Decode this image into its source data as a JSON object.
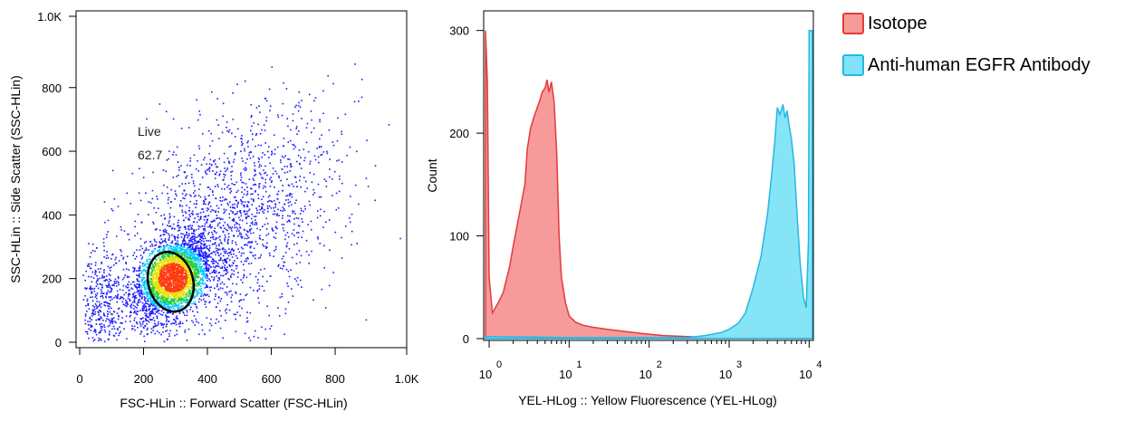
{
  "chart_data": [
    {
      "type": "scatter",
      "xlabel": "FSC-HLin :: Forward Scatter (FSC-HLin)",
      "ylabel": "SSC-HLin :: Side Scatter (SSC-HLin)",
      "xlim": [
        0,
        1024
      ],
      "ylim": [
        0,
        1024
      ],
      "x_ticks": [
        0,
        200,
        400,
        600,
        800,
        1024
      ],
      "x_tick_labels": [
        "0",
        "200",
        "400",
        "600",
        "800",
        "1.0K"
      ],
      "y_ticks": [
        0,
        200,
        400,
        600,
        800,
        1024
      ],
      "y_tick_labels": [
        "0",
        "200",
        "400",
        "600",
        "800",
        "1.0K"
      ],
      "density_colormap": [
        "#1b1bff",
        "#00c8ff",
        "#1fcf3f",
        "#e8e000",
        "#ff3a10"
      ],
      "gate": {
        "name": "Live",
        "percent": "62.7",
        "shape": "ellipse",
        "center": [
          285,
          190
        ],
        "radii": [
          140,
          190
        ],
        "color": "#000000"
      },
      "population": {
        "main": {
          "center": [
            290,
            205
          ],
          "spread": [
            60,
            60
          ],
          "share": 0.58
        },
        "broad": {
          "center": [
            460,
            360
          ],
          "spread": [
            170,
            160
          ],
          "share": 0.34
        },
        "debris": {
          "center": [
            70,
            110
          ],
          "spread": [
            40,
            90
          ],
          "share": 0.08
        }
      }
    },
    {
      "type": "area",
      "xlabel": "YEL-HLog :: Yellow Fluorescence (YEL-HLog)",
      "ylabel": "Count",
      "x_scale": "log",
      "xlim": [
        0.9,
        11000
      ],
      "ylim": [
        0,
        305
      ],
      "x_ticks": [
        1,
        10,
        100,
        1000,
        10000
      ],
      "x_tick_labels": [
        {
          "base": "10",
          "exp": "0"
        },
        {
          "base": "10",
          "exp": "1"
        },
        {
          "base": "10",
          "exp": "2"
        },
        {
          "base": "10",
          "exp": "3"
        },
        {
          "base": "10",
          "exp": "4"
        }
      ],
      "y_ticks": [
        0,
        100,
        200,
        300
      ],
      "y_tick_labels": [
        "0",
        "100",
        "200",
        "300"
      ],
      "series": [
        {
          "name": "Isotope",
          "fill": "#f79a9a",
          "stroke": "#e33b3b",
          "x": [
            0.9,
            0.95,
            1.0,
            1.1,
            1.3,
            1.5,
            1.8,
            2.0,
            2.3,
            2.5,
            2.8,
            3.0,
            3.3,
            3.6,
            4.0,
            4.3,
            4.6,
            5.0,
            5.3,
            5.6,
            6.0,
            6.5,
            7.0,
            7.5,
            8.0,
            9.0,
            10,
            12,
            15,
            20,
            30,
            50,
            80,
            150,
            300,
            600,
            1000,
            3000,
            11000
          ],
          "y": [
            300,
            250,
            60,
            25,
            35,
            45,
            70,
            90,
            115,
            130,
            150,
            185,
            205,
            215,
            225,
            232,
            240,
            244,
            252,
            240,
            250,
            230,
            180,
            100,
            60,
            35,
            22,
            16,
            13,
            11,
            9,
            7,
            5,
            3,
            2,
            1,
            1,
            1,
            1
          ]
        },
        {
          "name": "Anti-human EGFR Antibody",
          "fill": "#80e3f7",
          "stroke": "#24b8e0",
          "x": [
            0.9,
            1,
            10,
            100,
            300,
            500,
            800,
            1000,
            1300,
            1600,
            2000,
            2500,
            3000,
            3400,
            3700,
            4000,
            4300,
            4700,
            5000,
            5300,
            5600,
            6000,
            6500,
            7000,
            7700,
            8500,
            9200,
            9800,
            10000,
            10500,
            11000
          ],
          "y": [
            2,
            2,
            1,
            1,
            1,
            3,
            6,
            9,
            15,
            25,
            50,
            80,
            120,
            160,
            190,
            225,
            218,
            228,
            215,
            222,
            208,
            195,
            170,
            125,
            75,
            40,
            30,
            95,
            300,
            300,
            300
          ]
        }
      ]
    }
  ],
  "annotation": {
    "gate_label": "Live",
    "gate_value": "62.7"
  },
  "legend": {
    "items": [
      {
        "label": "Isotope",
        "fill": "#f79a9a",
        "stroke": "#e33b3b"
      },
      {
        "label": "Anti-human EGFR Antibody",
        "fill": "#80e3f7",
        "stroke": "#24b8e0"
      }
    ]
  }
}
